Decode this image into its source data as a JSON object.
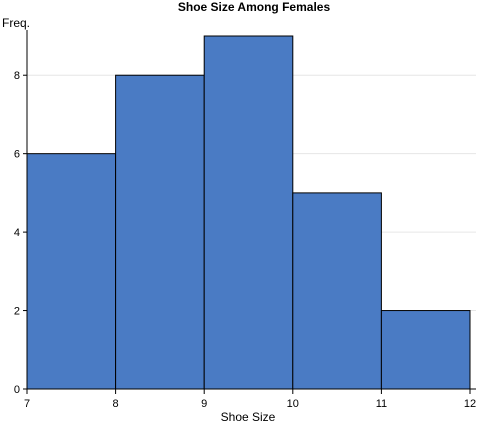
{
  "chart_data": {
    "type": "bar",
    "title": "Shoe Size Among Females",
    "xlabel": "Shoe Size",
    "ylabel": "Freq.",
    "bins": [
      {
        "start": 7,
        "end": 8,
        "value": 6
      },
      {
        "start": 8,
        "end": 9,
        "value": 8
      },
      {
        "start": 9,
        "end": 10,
        "value": 9
      },
      {
        "start": 10,
        "end": 11,
        "value": 5
      },
      {
        "start": 11,
        "end": 12,
        "value": 2
      }
    ],
    "xlim": [
      7,
      12
    ],
    "ylim": [
      0,
      9
    ],
    "xticks": [
      "7",
      "8",
      "9",
      "10",
      "11",
      "12"
    ],
    "yticks": [
      "0",
      "2",
      "4",
      "6",
      "8"
    ],
    "grid": true,
    "colors": {
      "bar": "#4a7bc4",
      "bar_stroke": "#000000",
      "grid": "#e6e6e6"
    }
  }
}
